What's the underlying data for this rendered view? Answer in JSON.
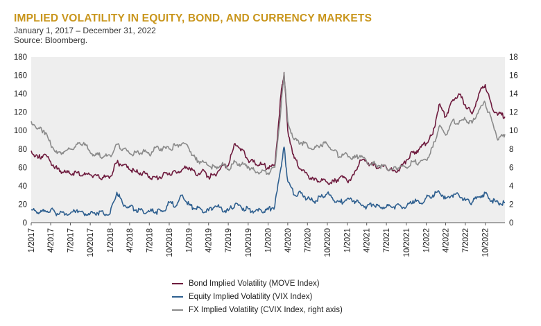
{
  "title": "IMPLIED VOLATILITY IN EQUITY, BOND, AND CURRENCY MARKETS",
  "subtitle": "January 1, 2017 – December 31, 2022",
  "source": "Source: Bloomberg.",
  "colors": {
    "bond": "#6e1b3e",
    "equity": "#2e5f8f",
    "fx": "#8a8a8a",
    "plot_bg": "#eeeeee",
    "title": "#c9961d"
  },
  "legend": [
    {
      "key": "bond",
      "label": "Bond Implied Volatility (MOVE Index)"
    },
    {
      "key": "equity",
      "label": "Equity Implied Volatility (VIX Index)"
    },
    {
      "key": "fx",
      "label": "FX Implied Volatility (CVIX Index, right axis)"
    }
  ],
  "chart_data": {
    "type": "line",
    "x_range": [
      "2017-01-01",
      "2022-12-31"
    ],
    "x_tick_labels": [
      "1/2017",
      "4/2017",
      "7/2017",
      "10/2017",
      "1/2018",
      "4/2018",
      "7/2018",
      "10/2018",
      "1/2019",
      "4/2019",
      "7/2019",
      "10/2019",
      "1/2020",
      "4/2020",
      "7/2020",
      "10/2020",
      "1/2021",
      "4/2021",
      "7/2021",
      "10/2021",
      "1/2022",
      "4/2022",
      "7/2022",
      "10/2022"
    ],
    "y_left": {
      "min": 0,
      "max": 180,
      "ticks": [
        0,
        20,
        40,
        60,
        80,
        100,
        120,
        140,
        160,
        180
      ]
    },
    "y_right": {
      "min": 0,
      "max": 18,
      "ticks": [
        0,
        2,
        4,
        6,
        8,
        10,
        12,
        14,
        16,
        18
      ]
    },
    "grid": false,
    "legend_position": "bottom",
    "series": [
      {
        "key": "bond",
        "axis": "left",
        "name": "Bond Implied Volatility (MOVE Index)",
        "points": [
          [
            "2017-01-01",
            78
          ],
          [
            "2017-02-01",
            70
          ],
          [
            "2017-03-01",
            74
          ],
          [
            "2017-04-01",
            66
          ],
          [
            "2017-05-01",
            58
          ],
          [
            "2017-06-01",
            55
          ],
          [
            "2017-07-01",
            53
          ],
          [
            "2017-08-01",
            54
          ],
          [
            "2017-09-01",
            52
          ],
          [
            "2017-10-01",
            52
          ],
          [
            "2017-11-01",
            51
          ],
          [
            "2017-12-01",
            49
          ],
          [
            "2018-01-01",
            50
          ],
          [
            "2018-02-01",
            65
          ],
          [
            "2018-03-01",
            63
          ],
          [
            "2018-04-01",
            58
          ],
          [
            "2018-05-01",
            55
          ],
          [
            "2018-06-01",
            54
          ],
          [
            "2018-07-01",
            50
          ],
          [
            "2018-08-01",
            49
          ],
          [
            "2018-09-01",
            51
          ],
          [
            "2018-10-01",
            54
          ],
          [
            "2018-11-01",
            55
          ],
          [
            "2018-12-01",
            58
          ],
          [
            "2019-01-01",
            60
          ],
          [
            "2019-02-01",
            52
          ],
          [
            "2019-03-01",
            56
          ],
          [
            "2019-04-01",
            50
          ],
          [
            "2019-05-01",
            52
          ],
          [
            "2019-06-01",
            62
          ],
          [
            "2019-07-01",
            62
          ],
          [
            "2019-08-01",
            86
          ],
          [
            "2019-09-01",
            80
          ],
          [
            "2019-10-01",
            68
          ],
          [
            "2019-11-01",
            65
          ],
          [
            "2019-12-01",
            63
          ],
          [
            "2020-01-01",
            60
          ],
          [
            "2020-02-01",
            62
          ],
          [
            "2020-03-01",
            140
          ],
          [
            "2020-03-15",
            163
          ],
          [
            "2020-04-01",
            100
          ],
          [
            "2020-05-01",
            70
          ],
          [
            "2020-06-01",
            58
          ],
          [
            "2020-07-01",
            52
          ],
          [
            "2020-08-01",
            46
          ],
          [
            "2020-09-01",
            45
          ],
          [
            "2020-10-01",
            44
          ],
          [
            "2020-11-01",
            44
          ],
          [
            "2020-12-01",
            50
          ],
          [
            "2021-01-01",
            45
          ],
          [
            "2021-02-01",
            52
          ],
          [
            "2021-03-01",
            68
          ],
          [
            "2021-04-01",
            66
          ],
          [
            "2021-05-01",
            62
          ],
          [
            "2021-06-01",
            60
          ],
          [
            "2021-07-01",
            60
          ],
          [
            "2021-08-01",
            56
          ],
          [
            "2021-09-01",
            58
          ],
          [
            "2021-10-01",
            68
          ],
          [
            "2021-11-01",
            76
          ],
          [
            "2021-12-01",
            80
          ],
          [
            "2022-01-01",
            86
          ],
          [
            "2022-02-01",
            96
          ],
          [
            "2022-03-01",
            128
          ],
          [
            "2022-04-01",
            115
          ],
          [
            "2022-05-01",
            132
          ],
          [
            "2022-06-01",
            140
          ],
          [
            "2022-07-01",
            128
          ],
          [
            "2022-08-01",
            118
          ],
          [
            "2022-09-01",
            140
          ],
          [
            "2022-10-01",
            150
          ],
          [
            "2022-11-01",
            125
          ],
          [
            "2022-12-01",
            118
          ],
          [
            "2022-12-31",
            115
          ]
        ]
      },
      {
        "key": "equity",
        "axis": "left",
        "name": "Equity Implied Volatility (VIX Index)",
        "points": [
          [
            "2017-01-01",
            14
          ],
          [
            "2017-02-01",
            11
          ],
          [
            "2017-03-01",
            12
          ],
          [
            "2017-04-01",
            14
          ],
          [
            "2017-05-01",
            10
          ],
          [
            "2017-06-01",
            11
          ],
          [
            "2017-07-01",
            10
          ],
          [
            "2017-08-01",
            14
          ],
          [
            "2017-09-01",
            10
          ],
          [
            "2017-10-01",
            10
          ],
          [
            "2017-11-01",
            11
          ],
          [
            "2017-12-01",
            10
          ],
          [
            "2018-01-01",
            10
          ],
          [
            "2018-02-01",
            33
          ],
          [
            "2018-03-01",
            20
          ],
          [
            "2018-04-01",
            18
          ],
          [
            "2018-05-01",
            14
          ],
          [
            "2018-06-01",
            13
          ],
          [
            "2018-07-01",
            12
          ],
          [
            "2018-08-01",
            12
          ],
          [
            "2018-09-01",
            12
          ],
          [
            "2018-10-01",
            22
          ],
          [
            "2018-11-01",
            18
          ],
          [
            "2018-12-01",
            30
          ],
          [
            "2019-01-01",
            19
          ],
          [
            "2019-02-01",
            15
          ],
          [
            "2019-03-01",
            14
          ],
          [
            "2019-04-01",
            13
          ],
          [
            "2019-05-01",
            18
          ],
          [
            "2019-06-01",
            15
          ],
          [
            "2019-07-01",
            13
          ],
          [
            "2019-08-01",
            20
          ],
          [
            "2019-09-01",
            16
          ],
          [
            "2019-10-01",
            15
          ],
          [
            "2019-11-01",
            12
          ],
          [
            "2019-12-01",
            13
          ],
          [
            "2020-01-01",
            14
          ],
          [
            "2020-02-01",
            18
          ],
          [
            "2020-03-01",
            60
          ],
          [
            "2020-03-15",
            82
          ],
          [
            "2020-04-01",
            45
          ],
          [
            "2020-05-01",
            30
          ],
          [
            "2020-06-01",
            32
          ],
          [
            "2020-07-01",
            26
          ],
          [
            "2020-08-01",
            23
          ],
          [
            "2020-09-01",
            28
          ],
          [
            "2020-10-01",
            32
          ],
          [
            "2020-11-01",
            24
          ],
          [
            "2020-12-01",
            22
          ],
          [
            "2021-01-01",
            26
          ],
          [
            "2021-02-01",
            24
          ],
          [
            "2021-03-01",
            21
          ],
          [
            "2021-04-01",
            17
          ],
          [
            "2021-05-01",
            20
          ],
          [
            "2021-06-01",
            17
          ],
          [
            "2021-07-01",
            17
          ],
          [
            "2021-08-01",
            17
          ],
          [
            "2021-09-01",
            19
          ],
          [
            "2021-10-01",
            17
          ],
          [
            "2021-11-01",
            24
          ],
          [
            "2021-12-01",
            21
          ],
          [
            "2022-01-01",
            27
          ],
          [
            "2022-02-01",
            30
          ],
          [
            "2022-03-01",
            34
          ],
          [
            "2022-04-01",
            26
          ],
          [
            "2022-05-01",
            30
          ],
          [
            "2022-06-01",
            30
          ],
          [
            "2022-07-01",
            24
          ],
          [
            "2022-08-01",
            22
          ],
          [
            "2022-09-01",
            28
          ],
          [
            "2022-10-01",
            32
          ],
          [
            "2022-11-01",
            24
          ],
          [
            "2022-12-01",
            21
          ],
          [
            "2022-12-31",
            22
          ]
        ]
      },
      {
        "key": "fx",
        "axis": "right",
        "name": "FX Implied Volatility (CVIX Index, right axis)",
        "points": [
          [
            "2017-01-01",
            11
          ],
          [
            "2017-02-01",
            10.2
          ],
          [
            "2017-03-01",
            10
          ],
          [
            "2017-04-01",
            8.5
          ],
          [
            "2017-05-01",
            7.5
          ],
          [
            "2017-06-01",
            7.7
          ],
          [
            "2017-07-01",
            8
          ],
          [
            "2017-08-01",
            8.5
          ],
          [
            "2017-09-01",
            8.7
          ],
          [
            "2017-10-01",
            7.6
          ],
          [
            "2017-11-01",
            7.4
          ],
          [
            "2017-12-01",
            7.1
          ],
          [
            "2018-01-01",
            7.3
          ],
          [
            "2018-02-01",
            8.5
          ],
          [
            "2018-03-01",
            8.0
          ],
          [
            "2018-04-01",
            7.5
          ],
          [
            "2018-05-01",
            7.6
          ],
          [
            "2018-06-01",
            7.7
          ],
          [
            "2018-07-01",
            7.4
          ],
          [
            "2018-08-01",
            8.2
          ],
          [
            "2018-09-01",
            8.0
          ],
          [
            "2018-10-01",
            8.0
          ],
          [
            "2018-11-01",
            8.4
          ],
          [
            "2018-12-01",
            8.6
          ],
          [
            "2019-01-01",
            8.0
          ],
          [
            "2019-02-01",
            6.8
          ],
          [
            "2019-03-01",
            6.6
          ],
          [
            "2019-04-01",
            6.2
          ],
          [
            "2019-05-01",
            6.0
          ],
          [
            "2019-06-01",
            6.3
          ],
          [
            "2019-07-01",
            5.8
          ],
          [
            "2019-08-01",
            6.6
          ],
          [
            "2019-09-01",
            6.3
          ],
          [
            "2019-10-01",
            6.1
          ],
          [
            "2019-11-01",
            5.6
          ],
          [
            "2019-12-01",
            5.5
          ],
          [
            "2020-01-01",
            5.4
          ],
          [
            "2020-02-01",
            6.0
          ],
          [
            "2020-03-01",
            12.5
          ],
          [
            "2020-03-15",
            16.3
          ],
          [
            "2020-04-01",
            11
          ],
          [
            "2020-05-01",
            9.0
          ],
          [
            "2020-06-01",
            8.7
          ],
          [
            "2020-07-01",
            8.4
          ],
          [
            "2020-08-01",
            8.0
          ],
          [
            "2020-09-01",
            8.5
          ],
          [
            "2020-10-01",
            8.5
          ],
          [
            "2020-11-01",
            7.8
          ],
          [
            "2020-12-01",
            7.1
          ],
          [
            "2021-01-01",
            7.4
          ],
          [
            "2021-02-01",
            7.0
          ],
          [
            "2021-03-01",
            7.3
          ],
          [
            "2021-04-01",
            6.6
          ],
          [
            "2021-05-01",
            6.4
          ],
          [
            "2021-06-01",
            6.2
          ],
          [
            "2021-07-01",
            5.9
          ],
          [
            "2021-08-01",
            5.8
          ],
          [
            "2021-09-01",
            6.0
          ],
          [
            "2021-10-01",
            6.0
          ],
          [
            "2021-11-01",
            6.6
          ],
          [
            "2021-12-01",
            6.5
          ],
          [
            "2022-01-01",
            6.8
          ],
          [
            "2022-02-01",
            8.2
          ],
          [
            "2022-03-01",
            10.4
          ],
          [
            "2022-04-01",
            9.5
          ],
          [
            "2022-05-01",
            11.0
          ],
          [
            "2022-06-01",
            10.8
          ],
          [
            "2022-07-01",
            11.2
          ],
          [
            "2022-08-01",
            10.8
          ],
          [
            "2022-09-01",
            12.2
          ],
          [
            "2022-10-01",
            13.0
          ],
          [
            "2022-11-01",
            11.0
          ],
          [
            "2022-12-01",
            9.0
          ],
          [
            "2022-12-31",
            9.6
          ]
        ]
      }
    ]
  }
}
